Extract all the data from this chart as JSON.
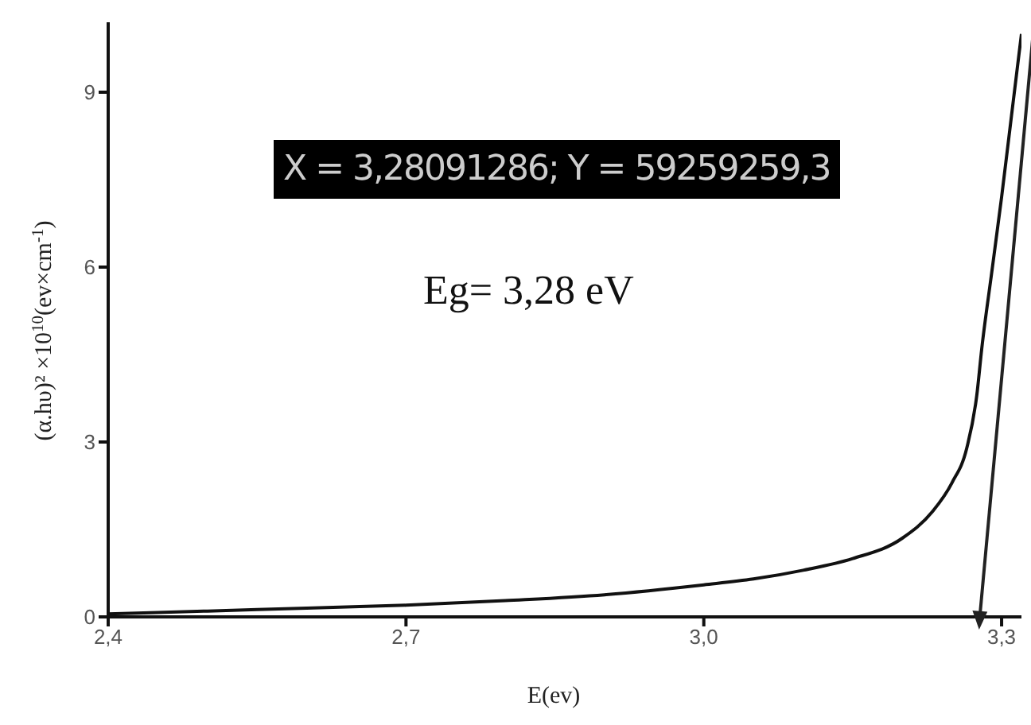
{
  "chart_data": {
    "type": "line",
    "xlabel": "E(ev)",
    "ylabel": "(α.hυ)² ×10$^{10}$(ev×cm$^{-1}$)",
    "annotations": [
      "X = 3,28091286; Y = 59259259,3",
      "Eg= 3,28 eV"
    ],
    "series": [
      {
        "color": "#111111",
        "x": [
          2.4,
          2.5,
          2.6,
          2.7,
          2.8,
          2.9,
          3.0,
          3.05,
          3.1,
          3.15,
          3.2,
          3.23,
          3.25,
          3.265,
          3.275,
          3.28,
          3.29,
          3.3,
          3.31,
          3.32
        ],
        "values": [
          0.05,
          0.1,
          0.15,
          0.2,
          0.28,
          0.38,
          0.55,
          0.65,
          0.8,
          1.0,
          1.35,
          1.8,
          2.3,
          2.9,
          3.8,
          4.6,
          5.9,
          7.2,
          8.6,
          10.0
        ]
      }
    ],
    "xlim": [
      2.4,
      3.32
    ],
    "ylim": [
      0,
      10.2
    ],
    "xticks": [
      {
        "value": 2.4,
        "label": "2,4"
      },
      {
        "value": 2.7,
        "label": "2,7"
      },
      {
        "value": 3.0,
        "label": "3,0"
      },
      {
        "value": 3.3,
        "label": "3,3"
      }
    ],
    "yticks": [
      0,
      3,
      6,
      9
    ],
    "grid": false,
    "marker": "none",
    "line_style": "solid"
  }
}
